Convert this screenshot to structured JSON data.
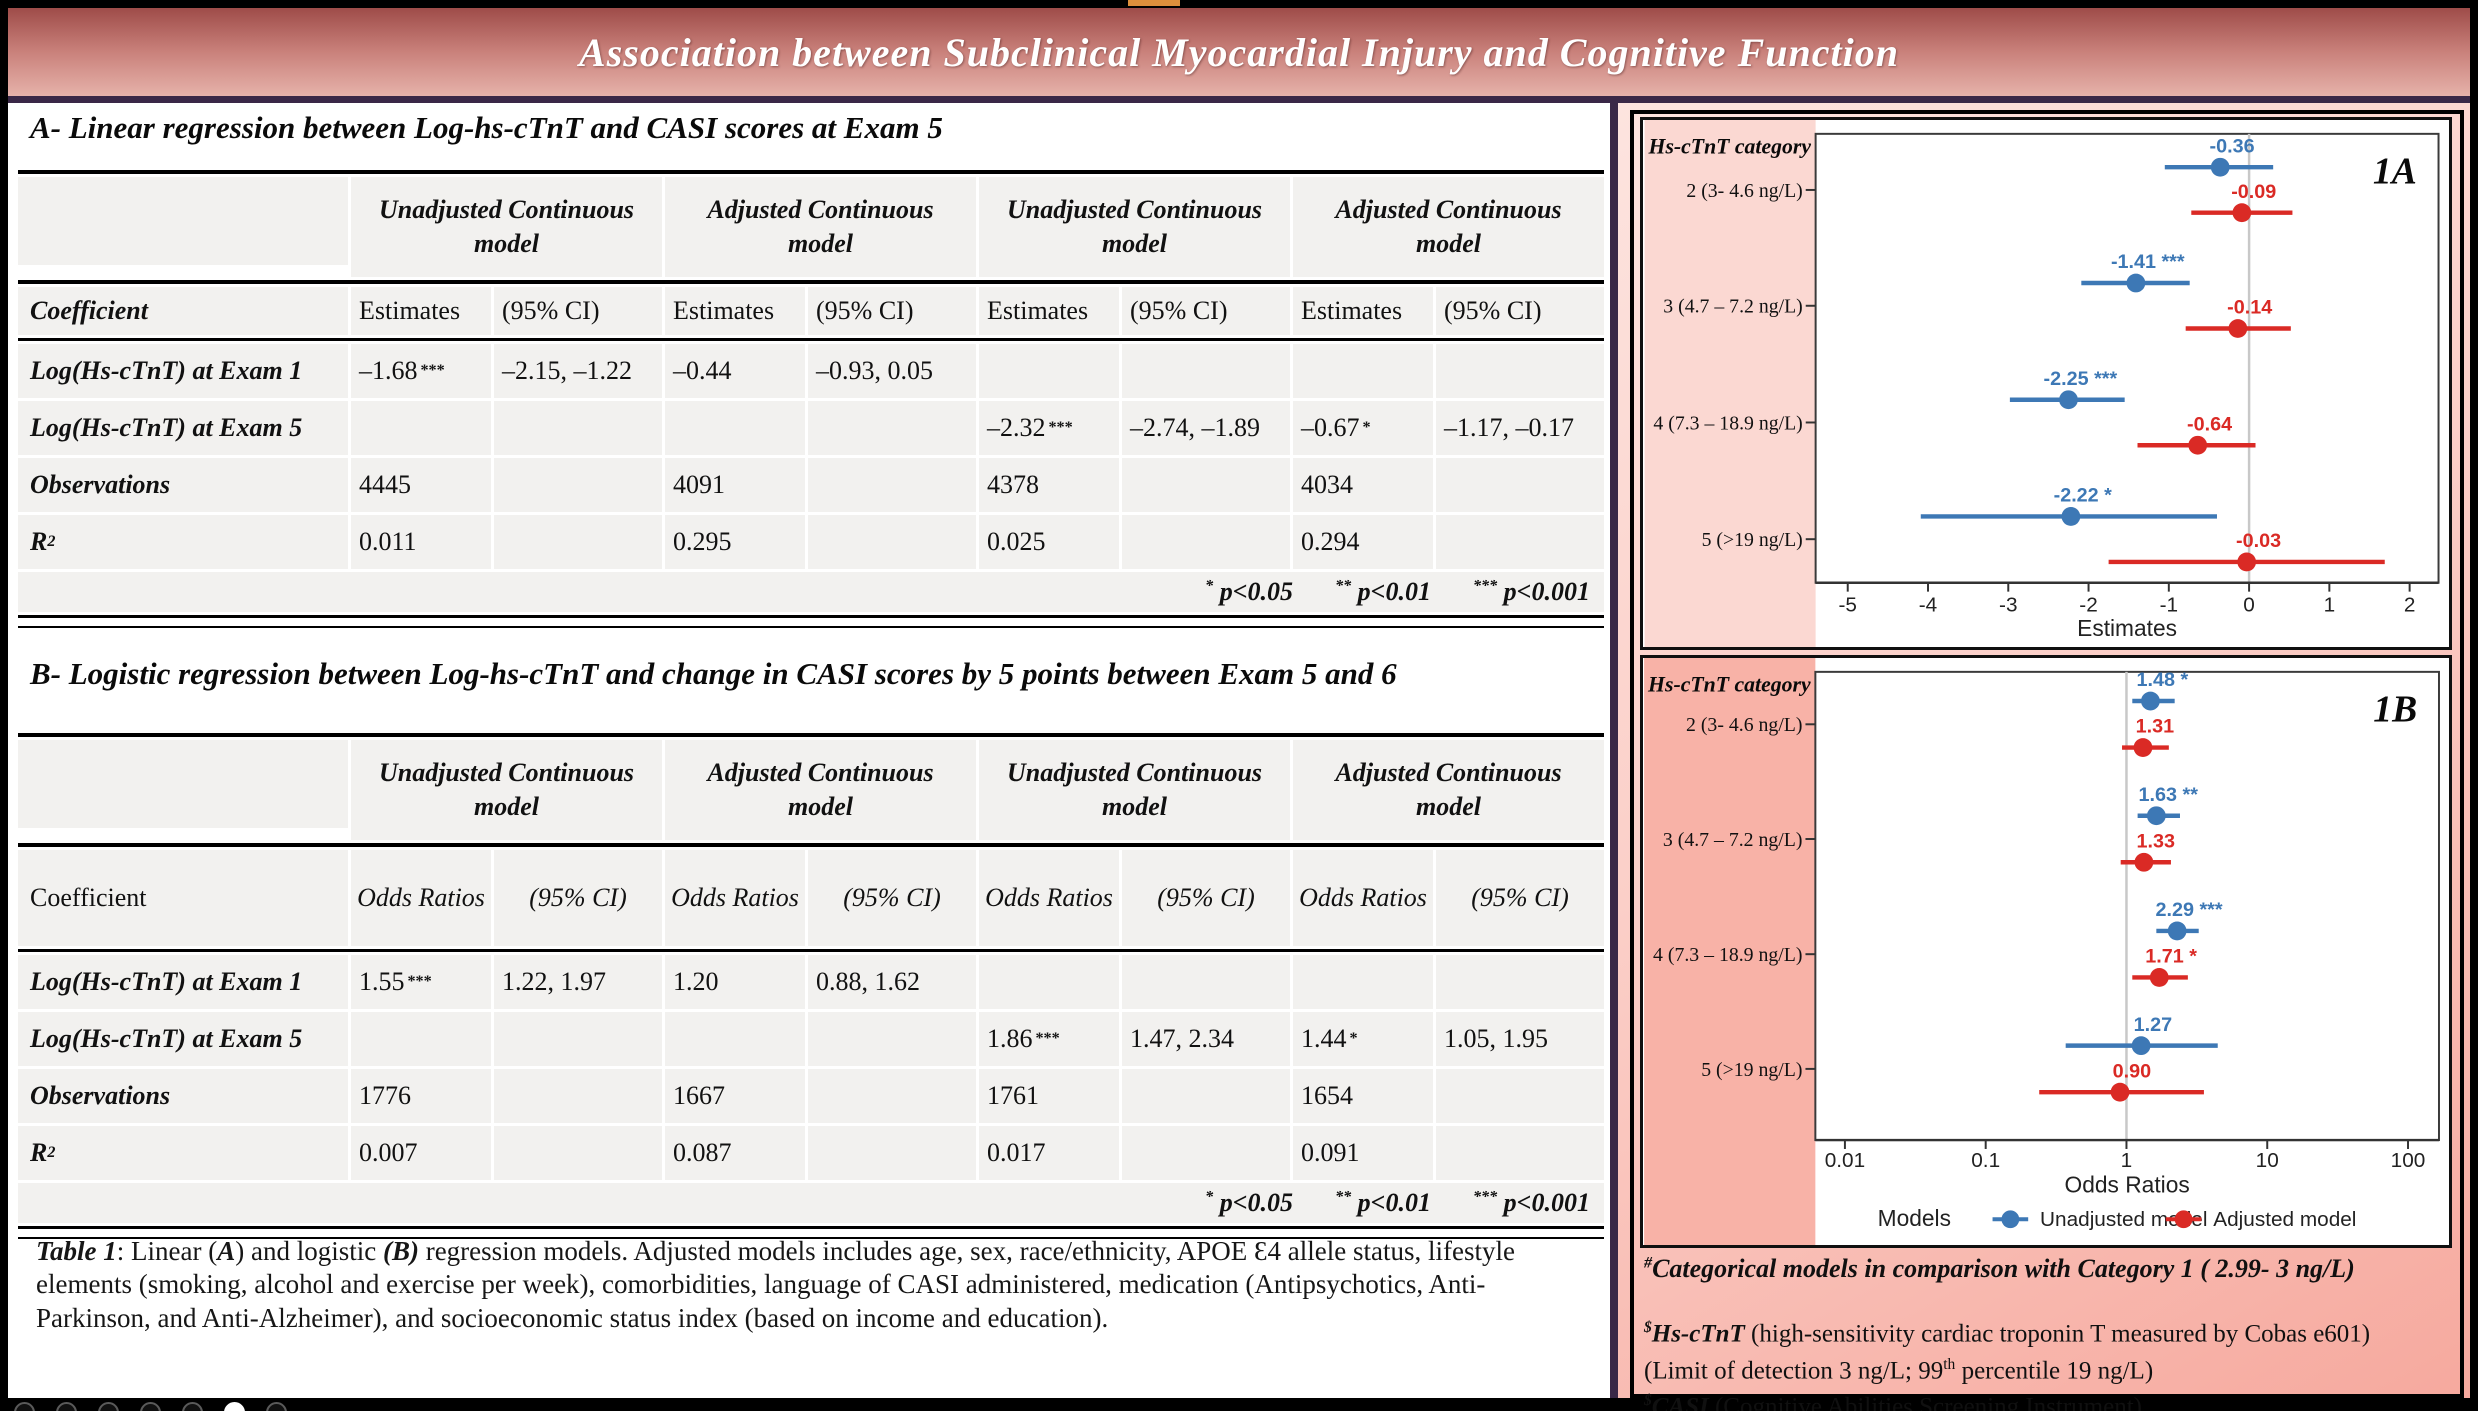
{
  "poster": {
    "title": "Association between Subclinical Myocardial Injury and Cognitive Function",
    "colors": {
      "header_top": "#9e4c49",
      "header_bottom": "#e6b2aa",
      "divider_purple": "#3a2847",
      "panel_pink_light": "#fde4df",
      "panel_pink_deep": "#f6a99e",
      "orange_tab": "#dd8f3c",
      "table_cell_gray": "#f2f1ef",
      "unadjusted_blue": "#3d78b5",
      "adjusted_red": "#da2a25"
    }
  },
  "section_a": {
    "title": "A- Linear regression between Log-hs-cTnT and CASI scores at Exam 5",
    "table": {
      "group_headers": [
        "Unadjusted Continuous model",
        "Adjusted Continuous model",
        "Unadjusted Continuous model",
        "Adjusted Continuous model"
      ],
      "coefficient_header": "Coefficient",
      "value_header": "Estimates",
      "ci_header": "(95% CI)",
      "rows": [
        {
          "label": "Log(Hs-cTnT) at Exam 1",
          "cells": [
            {
              "v": "–1.68",
              "s": "***"
            },
            {
              "v": "–2.15, –1.22"
            },
            {
              "v": "–0.44"
            },
            {
              "v": "–0.93, 0.05"
            },
            {
              "v": ""
            },
            {
              "v": ""
            },
            {
              "v": ""
            },
            {
              "v": ""
            }
          ]
        },
        {
          "label": "Log(Hs-cTnT) at Exam 5",
          "cells": [
            {
              "v": ""
            },
            {
              "v": ""
            },
            {
              "v": ""
            },
            {
              "v": ""
            },
            {
              "v": "–2.32",
              "s": "***"
            },
            {
              "v": "–2.74, –1.89"
            },
            {
              "v": "–0.67",
              "s": "*"
            },
            {
              "v": "–1.17, –0.17"
            }
          ]
        },
        {
          "label": "Observations",
          "cells": [
            {
              "v": "4445"
            },
            {
              "v": ""
            },
            {
              "v": "4091"
            },
            {
              "v": ""
            },
            {
              "v": "4378"
            },
            {
              "v": ""
            },
            {
              "v": "4034"
            },
            {
              "v": ""
            }
          ]
        },
        {
          "label": "R",
          "label_sup": "2",
          "cells": [
            {
              "v": "0.011"
            },
            {
              "v": ""
            },
            {
              "v": "0.295"
            },
            {
              "v": ""
            },
            {
              "v": "0.025"
            },
            {
              "v": ""
            },
            {
              "v": "0.294"
            },
            {
              "v": ""
            }
          ]
        }
      ],
      "footer_parts": [
        {
          "s": "*",
          "t": " p<0.05"
        },
        {
          "s": "**",
          "t": " p<0.01"
        },
        {
          "s": "***",
          "t": " p<0.001"
        }
      ]
    }
  },
  "section_b": {
    "title": "B- Logistic regression between Log-hs-cTnT and change in CASI scores by 5 points between Exam 5 and 6",
    "table": {
      "group_headers": [
        "Unadjusted Continuous model",
        "Adjusted Continuous model",
        "Unadjusted Continuous model",
        "Adjusted Continuous model"
      ],
      "coefficient_header": "Coefficient",
      "value_header": "Odds Ratios",
      "ci_header": "(95% CI)",
      "rows": [
        {
          "label": "Log(Hs-cTnT) at Exam 1",
          "cells": [
            {
              "v": "1.55",
              "s": "***"
            },
            {
              "v": "1.22, 1.97"
            },
            {
              "v": "1.20"
            },
            {
              "v": "0.88, 1.62"
            },
            {
              "v": ""
            },
            {
              "v": ""
            },
            {
              "v": ""
            },
            {
              "v": ""
            }
          ]
        },
        {
          "label": "Log(Hs-cTnT) at Exam 5",
          "cells": [
            {
              "v": ""
            },
            {
              "v": ""
            },
            {
              "v": ""
            },
            {
              "v": ""
            },
            {
              "v": "1.86",
              "s": "***"
            },
            {
              "v": "1.47, 2.34"
            },
            {
              "v": "1.44",
              "s": "*"
            },
            {
              "v": "1.05, 1.95"
            }
          ]
        },
        {
          "label": "Observations",
          "cells": [
            {
              "v": "1776"
            },
            {
              "v": ""
            },
            {
              "v": "1667"
            },
            {
              "v": ""
            },
            {
              "v": "1761"
            },
            {
              "v": ""
            },
            {
              "v": "1654"
            },
            {
              "v": ""
            }
          ]
        },
        {
          "label": "R",
          "label_sup": "2",
          "cells": [
            {
              "v": "0.007"
            },
            {
              "v": ""
            },
            {
              "v": "0.087"
            },
            {
              "v": ""
            },
            {
              "v": "0.017"
            },
            {
              "v": ""
            },
            {
              "v": "0.091"
            },
            {
              "v": ""
            }
          ]
        }
      ],
      "footer_parts": [
        {
          "s": "*",
          "t": " p<0.05"
        },
        {
          "s": "**",
          "t": " p<0.01"
        },
        {
          "s": "***",
          "t": " p<0.001"
        }
      ]
    }
  },
  "caption": {
    "segments": [
      {
        "t": "Table 1",
        "b": 1,
        "i": 1
      },
      {
        "t": ": Linear ("
      },
      {
        "t": "A",
        "b": 1,
        "i": 1
      },
      {
        "t": ") and logistic "
      },
      {
        "t": "(B)",
        "b": 1,
        "i": 1
      },
      {
        "t": " regression models. Adjusted models includes age, sex, race/ethnicity, APOE Ɛ4 allele status, lifestyle elements (smoking, alcohol and exercise per week), comorbidities, language of CASI administered, medication (Antipsychotics, Anti-Parkinson, and Anti-Alzheimer), and socioeconomic status index (based on income and education)."
      }
    ]
  },
  "chart_data": [
    {
      "type": "forest",
      "tag": "1A",
      "column_header": "Hs-cTnT category",
      "xlabel": "Estimates",
      "scale": "linear",
      "refline": 0,
      "xticks": [
        {
          "v": -5,
          "label": "-5"
        },
        {
          "v": -4,
          "label": "-4"
        },
        {
          "v": -3,
          "label": "-3"
        },
        {
          "v": -2,
          "label": "-2"
        },
        {
          "v": -1,
          "label": "-1"
        },
        {
          "v": 0,
          "label": "0"
        },
        {
          "v": 1,
          "label": "1"
        },
        {
          "v": 2,
          "label": "2"
        }
      ],
      "categories": [
        "2 (3- 4.6 ng/L)",
        "3 (4.7 – 7.2 ng/L)",
        "4 (7.3 – 18.9 ng/L)",
        "5 (>19 ng/L)"
      ],
      "series": [
        {
          "name": "Unadjusted model",
          "color": "#3d78b5",
          "points": [
            {
              "est": -0.36,
              "lo": -1.05,
              "hi": 0.3,
              "label": "-0.36"
            },
            {
              "est": -1.41,
              "lo": -2.09,
              "hi": -0.74,
              "label": "-1.41 ***"
            },
            {
              "est": -2.25,
              "lo": -2.98,
              "hi": -1.55,
              "label": "-2.25 ***"
            },
            {
              "est": -2.22,
              "lo": -4.09,
              "hi": -0.4,
              "label": "-2.22 *"
            }
          ]
        },
        {
          "name": "Adjusted model",
          "color": "#da2a25",
          "points": [
            {
              "est": -0.09,
              "lo": -0.72,
              "hi": 0.54,
              "label": "-0.09"
            },
            {
              "est": -0.14,
              "lo": -0.79,
              "hi": 0.52,
              "label": "-0.14"
            },
            {
              "est": -0.64,
              "lo": -1.39,
              "hi": 0.08,
              "label": "-0.64"
            },
            {
              "est": -0.03,
              "lo": -1.75,
              "hi": 1.69,
              "label": "-0.03"
            }
          ]
        }
      ]
    },
    {
      "type": "forest",
      "tag": "1B",
      "column_header": "Hs-cTnT category",
      "xlabel": "Odds Ratios",
      "scale": "log",
      "refline": 1,
      "xticks": [
        {
          "v": 0.01,
          "label": "0.01"
        },
        {
          "v": 0.1,
          "label": "0.1"
        },
        {
          "v": 1,
          "label": "1"
        },
        {
          "v": 10,
          "label": "10"
        },
        {
          "v": 100,
          "label": "100"
        }
      ],
      "categories": [
        "2 (3- 4.6 ng/L)",
        "3 (4.7 – 7.2 ng/L)",
        "4 (7.3 – 18.9 ng/L)",
        "5 (>19 ng/L)"
      ],
      "series": [
        {
          "name": "Unadjusted model",
          "color": "#3d78b5",
          "points": [
            {
              "est": 1.48,
              "lo": 1.1,
              "hi": 2.2,
              "label": "1.48 *"
            },
            {
              "est": 1.63,
              "lo": 1.2,
              "hi": 2.4,
              "label": "1.63 **"
            },
            {
              "est": 2.29,
              "lo": 1.63,
              "hi": 3.26,
              "label": "2.29 ***"
            },
            {
              "est": 1.27,
              "lo": 0.37,
              "hi": 4.45,
              "label": "1.27"
            }
          ]
        },
        {
          "name": "Adjusted model",
          "color": "#da2a25",
          "points": [
            {
              "est": 1.31,
              "lo": 0.93,
              "hi": 2.0,
              "label": "1.31"
            },
            {
              "est": 1.33,
              "lo": 0.91,
              "hi": 2.07,
              "label": "1.33"
            },
            {
              "est": 1.71,
              "lo": 1.1,
              "hi": 2.73,
              "label": "1.71 *"
            },
            {
              "est": 0.9,
              "lo": 0.24,
              "hi": 3.55,
              "label": "0.90"
            }
          ]
        }
      ],
      "legend": {
        "title": "Models",
        "entries": [
          "Unadjusted model",
          "Adjusted model"
        ]
      }
    }
  ],
  "right_footnotes": [
    {
      "cls": "fn1",
      "segments": [
        {
          "t": "#",
          "sup": 1,
          "b": 1,
          "i": 1
        },
        {
          "t": "Categorical models in comparison with Category 1 ( 2.99- 3 ng/L)",
          "b": 1,
          "i": 1
        }
      ]
    },
    {
      "cls": "fn",
      "segments": [
        {
          "t": "$",
          "sup": 1,
          "b": 1,
          "i": 1
        },
        {
          "t": "Hs-cTnT ",
          "b": 1,
          "i": 1
        },
        {
          "t": "(high-sensitivity cardiac troponin T measured by Cobas e601)"
        }
      ]
    },
    {
      "cls": "fn",
      "segments": [
        {
          "t": "(Limit of detection 3 ng/L; 99"
        },
        {
          "t": "th",
          "sup": 1
        },
        {
          "t": " percentile 19 ng/L)"
        }
      ]
    },
    {
      "cls": "fn",
      "segments": [
        {
          "t": "$",
          "sup": 1,
          "b": 1,
          "i": 1
        },
        {
          "t": "CASI ",
          "b": 1,
          "i": 1
        },
        {
          "t": "(Cognitive Abilities Screening Instrument)"
        }
      ]
    }
  ],
  "slide_nav": {
    "dot_count": 7,
    "active_index": 5
  }
}
